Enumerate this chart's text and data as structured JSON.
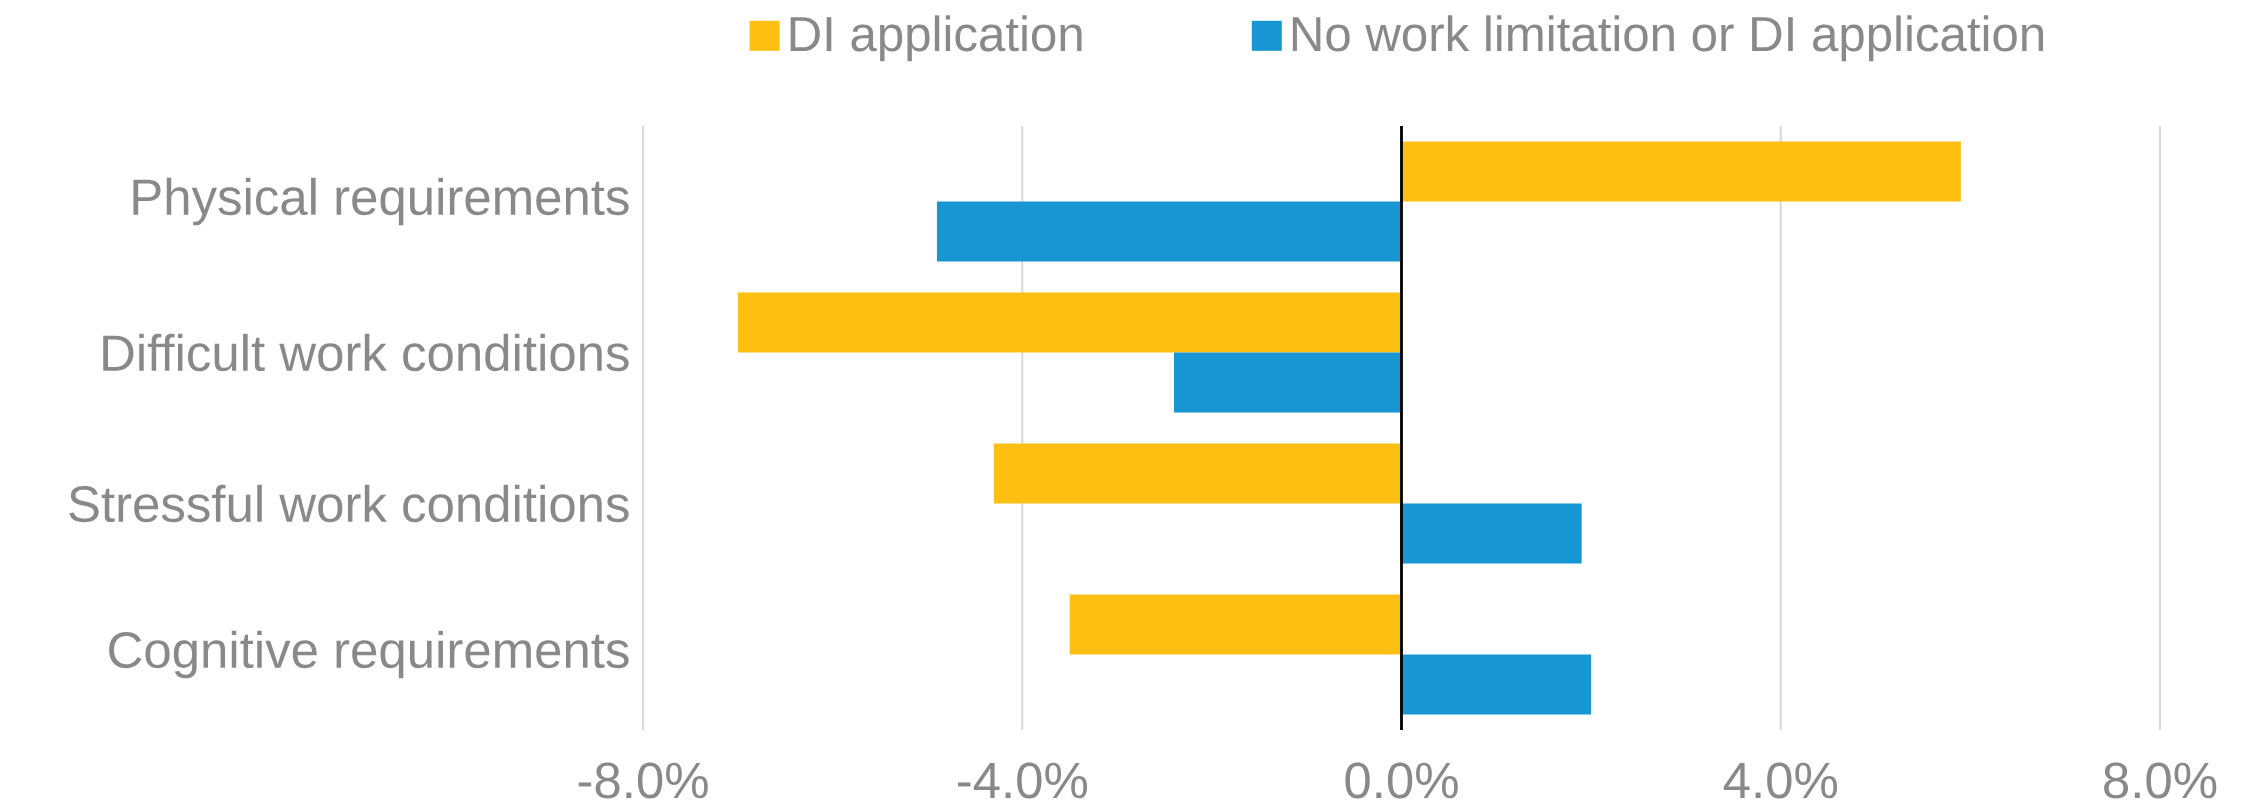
{
  "chart_data": {
    "type": "bar",
    "orientation": "horizontal",
    "categories": [
      "Physical requirements",
      "Difficult work conditions",
      "Stressful work conditions",
      "Cognitive requirements"
    ],
    "series": [
      {
        "name": "DI application",
        "color": "#fcbf12",
        "values": [
          5.9,
          -7.0,
          -4.3,
          -3.5
        ]
      },
      {
        "name": "No work limitation or DI application",
        "color": "#1896d3",
        "values": [
          -4.9,
          -2.4,
          1.9,
          2.0
        ]
      }
    ],
    "xlim": [
      -8,
      8
    ],
    "xticks": [
      {
        "value": -8,
        "label": "-8.0%"
      },
      {
        "value": -4,
        "label": "-4.0%"
      },
      {
        "value": 0,
        "label": "0.0%"
      },
      {
        "value": 4,
        "label": "4.0%"
      },
      {
        "value": 8,
        "label": "8.0%"
      }
    ],
    "grid": "x",
    "legend": "top"
  }
}
